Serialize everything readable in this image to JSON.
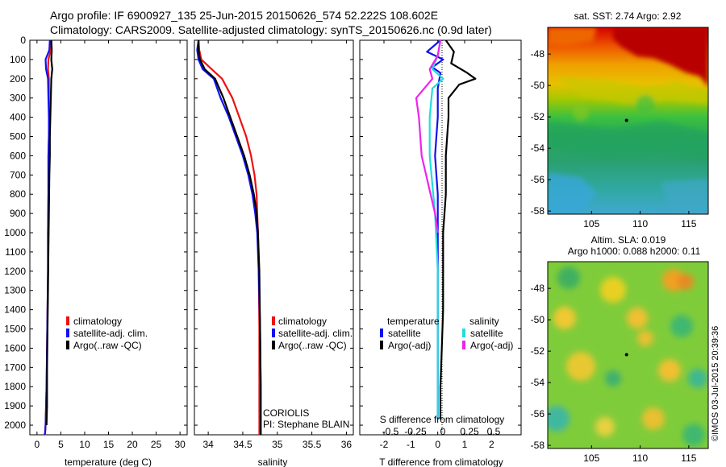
{
  "header": {
    "line1": "Argo profile: IF 6900927_135 25-Jun-2015 20150626_574 52.222S 108.602E",
    "line2": "Climatology: CARS2009. Satellite-adjusted climatology: synTS_20150626.nc (0.9d later)"
  },
  "timestamp": "©IMOS 03-Jul-2015 20:39:36",
  "colors": {
    "climatology": "#ee1111",
    "satellite": "#1111ee",
    "argo": "#000000",
    "satellite_salinity": "#22dddd",
    "argo_salinity": "#ee22ee"
  },
  "chart_data": [
    {
      "id": "temperature",
      "type": "line",
      "xlabel": "temperature (deg C)",
      "xticks": [
        "0",
        "5",
        "10",
        "15",
        "20",
        "25",
        "30"
      ],
      "xlim": [
        -1.5,
        31.5
      ],
      "ylim": [
        0,
        2050
      ],
      "y_reversed": true,
      "yticks": [
        "0",
        "100",
        "200",
        "300",
        "400",
        "500",
        "600",
        "700",
        "800",
        "900",
        "1000",
        "1100",
        "1200",
        "1300",
        "1400",
        "1500",
        "1600",
        "1700",
        "1800",
        "1900",
        "2000"
      ],
      "legend": [
        "climatology",
        "satellite-adj. clim.",
        "Argo(..raw -QC)"
      ],
      "series": [
        {
          "name": "climatology",
          "color": "#ee1111",
          "x": [
            2.9,
            2.9,
            2.4,
            2.3,
            2.5,
            2.5,
            2.5,
            2.5,
            2.4,
            2.4,
            2.3,
            2.3,
            2.2,
            2.1,
            2.0,
            1.9,
            1.8,
            1.7,
            1.6
          ],
          "y": [
            0,
            50,
            100,
            150,
            200,
            300,
            400,
            500,
            600,
            800,
            1000,
            1200,
            1400,
            1600,
            1800,
            1900,
            2000,
            2040,
            2050
          ]
        },
        {
          "name": "satellite-adj. clim.",
          "color": "#1111ee",
          "x": [
            2.7,
            2.6,
            1.8,
            1.9,
            2.3,
            2.4,
            2.5,
            2.5,
            2.4,
            2.4,
            2.3,
            2.3,
            2.2,
            2.1,
            2.0,
            1.9,
            1.8,
            1.7,
            1.6
          ],
          "y": [
            0,
            50,
            100,
            150,
            200,
            300,
            400,
            500,
            600,
            800,
            1000,
            1200,
            1400,
            1600,
            1800,
            1900,
            2000,
            2040,
            2050
          ]
        },
        {
          "name": "Argo(..raw -QC)",
          "color": "#000000",
          "x": [
            3.0,
            3.1,
            3.0,
            3.2,
            3.0,
            2.9,
            2.8,
            2.7,
            2.7,
            2.6,
            2.5,
            2.4,
            2.3,
            2.2,
            2.1,
            2.1,
            2.0
          ],
          "y": [
            0,
            50,
            100,
            150,
            200,
            300,
            400,
            500,
            600,
            700,
            900,
            1100,
            1300,
            1500,
            1700,
            1900,
            2000
          ]
        }
      ]
    },
    {
      "id": "salinity",
      "type": "line",
      "xlabel": "salinity",
      "xticks": [
        "34",
        "34.5",
        "35",
        "35.5",
        "36"
      ],
      "xlim": [
        33.8,
        36.1
      ],
      "ylim": [
        0,
        2050
      ],
      "y_reversed": true,
      "legend": [
        "climatology",
        "satellite-adj. clim.",
        "Argo(..raw -QC)"
      ],
      "annotation": [
        "CORIOLIS",
        "PI: Stephane BLAIN"
      ],
      "series": [
        {
          "name": "climatology",
          "color": "#ee1111",
          "x": [
            33.86,
            33.87,
            33.9,
            34.05,
            34.2,
            34.35,
            34.45,
            34.55,
            34.62,
            34.67,
            34.7,
            34.71,
            34.72,
            34.73,
            34.74,
            34.74,
            34.74
          ],
          "y": [
            0,
            50,
            100,
            150,
            200,
            300,
            400,
            500,
            600,
            700,
            800,
            900,
            1000,
            1200,
            1500,
            1800,
            2050
          ]
        },
        {
          "name": "satellite-adj. clim.",
          "color": "#1111ee",
          "x": [
            33.86,
            33.84,
            33.86,
            33.92,
            34.08,
            34.18,
            34.3,
            34.4,
            34.5,
            34.58,
            34.64,
            34.68,
            34.71,
            34.73,
            34.75,
            34.76,
            34.76,
            34.76
          ],
          "y": [
            0,
            50,
            100,
            150,
            200,
            300,
            400,
            500,
            600,
            700,
            800,
            900,
            1000,
            1200,
            1500,
            1800,
            1950,
            2050
          ]
        },
        {
          "name": "Argo(..raw -QC)",
          "color": "#000000",
          "x": [
            33.86,
            33.86,
            33.88,
            33.95,
            34.1,
            34.22,
            34.32,
            34.42,
            34.52,
            34.6,
            34.66,
            34.7,
            34.72,
            34.74,
            34.75,
            34.76,
            34.76,
            34.76
          ],
          "y": [
            0,
            50,
            100,
            150,
            200,
            300,
            400,
            500,
            600,
            700,
            800,
            900,
            1000,
            1200,
            1500,
            1800,
            1950,
            2050
          ]
        }
      ]
    },
    {
      "id": "difference",
      "type": "line",
      "xlabel": "T difference from climatology",
      "xticks": [
        "-2",
        "-1",
        "0",
        "1",
        "2"
      ],
      "xlim": [
        -2.9,
        3.1
      ],
      "top_axis_label": "S difference from climatology",
      "top_axis_ticks": [
        "-0.5",
        "-0.25",
        "0",
        "0.25",
        "0.5"
      ],
      "ylim": [
        0,
        2050
      ],
      "y_reversed": true,
      "legend_headers": [
        "temperature",
        "salinity"
      ],
      "legend": [
        "satellite",
        "Argo(-adj)",
        "satellite",
        "Argo(-adj)"
      ],
      "series": [
        {
          "name": "temperature satellite",
          "color": "#1111ee",
          "x": [
            0.1,
            -0.4,
            0.2,
            -0.2,
            0.1,
            0.0,
            0.0,
            -0.1,
            0.0,
            0.0,
            0.0,
            0.0,
            0.0,
            0.0,
            0.0
          ],
          "y": [
            0,
            60,
            100,
            140,
            170,
            250,
            400,
            600,
            800,
            1000,
            1200,
            1400,
            1600,
            1800,
            1970
          ]
        },
        {
          "name": "temperature Argo(-adj)",
          "color": "#000000",
          "x": [
            0.3,
            0.6,
            0.5,
            1.1,
            1.4,
            0.8,
            0.4,
            0.4,
            0.3,
            0.3,
            0.2,
            0.2,
            0.2,
            0.15,
            0.1,
            0.1
          ],
          "y": [
            0,
            60,
            120,
            170,
            200,
            230,
            300,
            400,
            600,
            800,
            1000,
            1200,
            1400,
            1600,
            1800,
            1970
          ]
        },
        {
          "name": "salinity satellite",
          "color": "#22dddd",
          "x": [
            0.1,
            0.0,
            -0.2,
            0.2,
            -0.2,
            -0.3,
            -0.3,
            -0.1,
            0.0,
            0.0,
            0.0,
            0.0,
            0.0
          ],
          "y": [
            0,
            80,
            150,
            200,
            250,
            400,
            600,
            900,
            1200,
            1400,
            1600,
            1800,
            1970
          ]
        },
        {
          "name": "salinity Argo(-adj)",
          "color": "#ee22ee",
          "x": [
            0.1,
            0.0,
            -0.3,
            -0.2,
            -0.8,
            -0.7,
            -0.6,
            -0.1,
            0.0
          ],
          "y": [
            0,
            80,
            150,
            200,
            300,
            400,
            600,
            900,
            1000
          ]
        }
      ]
    },
    {
      "id": "sst-map",
      "type": "heatmap",
      "title": "sat. SST: 2.74 Argo: 2.92",
      "xticks": [
        "105",
        "110",
        "115"
      ],
      "xlim": [
        100.5,
        117.0
      ],
      "yticks": [
        "-48",
        "-50",
        "-52",
        "-54",
        "-56",
        "-58"
      ],
      "ylim": [
        -58.2,
        -46.3
      ],
      "marker": {
        "lon": 108.602,
        "lat": -52.222
      }
    },
    {
      "id": "sla-map",
      "type": "heatmap",
      "title_lines": [
        "Altim. SLA: 0.019",
        "Argo h1000: 0.088 h2000: 0.11"
      ],
      "xticks": [
        "105",
        "110",
        "115"
      ],
      "xlim": [
        100.5,
        117.0
      ],
      "yticks": [
        "-48",
        "-50",
        "-52",
        "-54",
        "-56",
        "-58"
      ],
      "ylim": [
        -58.2,
        -46.3
      ],
      "marker": {
        "lon": 108.602,
        "lat": -52.222
      }
    }
  ]
}
